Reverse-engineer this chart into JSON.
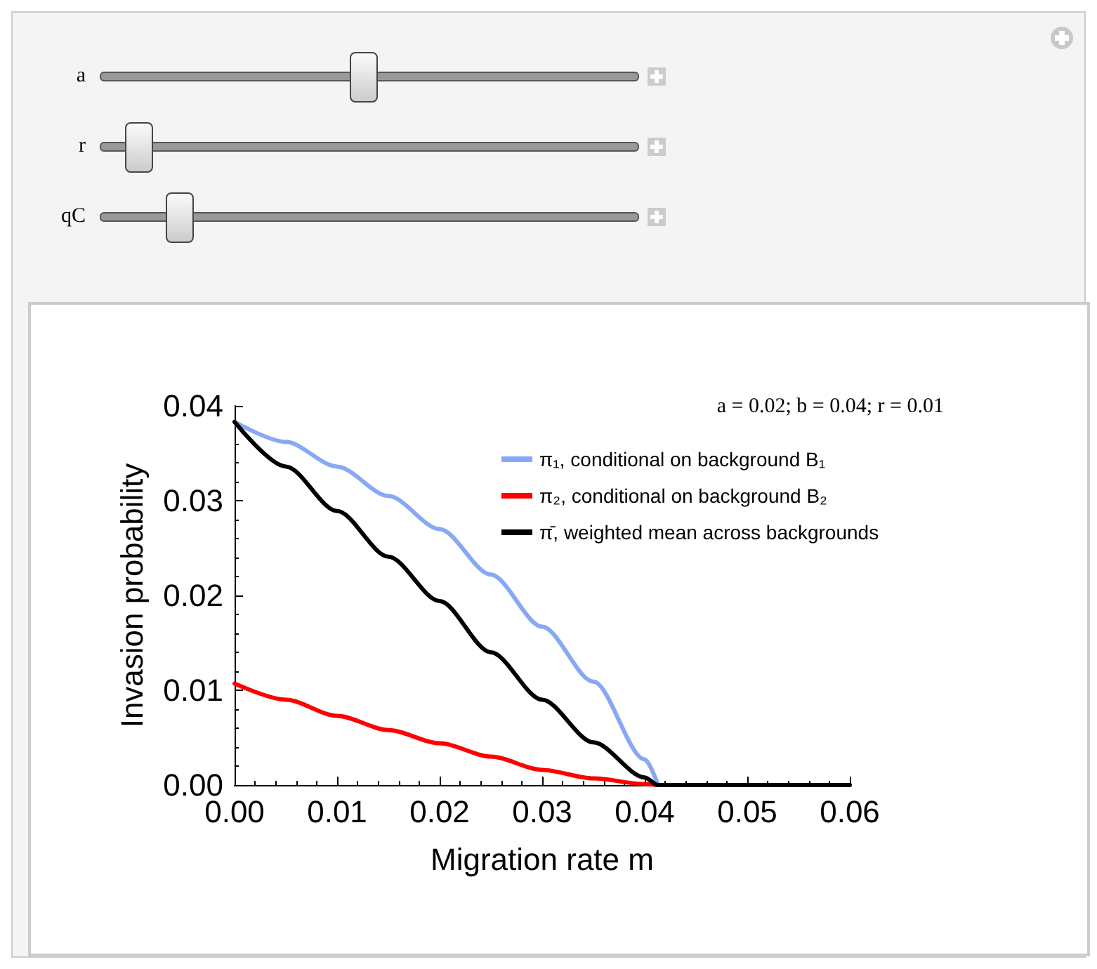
{
  "chart_data": {
    "type": "line",
    "title": "a = 0.02; b = 0.04; r = 0.01",
    "xlabel": "Migration rate m",
    "ylabel": "Invasion probability",
    "annotations": [
      "a",
      "r",
      "qC"
    ],
    "x": [
      0,
      0.005,
      0.01,
      0.015,
      0.02,
      0.025,
      0.03,
      0.035,
      0.04,
      0.0413,
      0.045,
      0.05,
      0.055,
      0.06
    ],
    "series": [
      {
        "name": "π₁, conditional on background B₁",
        "color": "#87a8f5",
        "values": [
          0.0383,
          0.0362,
          0.0336,
          0.0305,
          0.027,
          0.0222,
          0.0167,
          0.0109,
          0.0027,
          0,
          null,
          null,
          null,
          null
        ]
      },
      {
        "name": "π₂, conditional on background B₂",
        "color": "#ff0000",
        "values": [
          0.0107,
          0.009,
          0.0073,
          0.0058,
          0.0044,
          0.003,
          0.0016,
          0.0007,
          0.0001,
          0,
          null,
          null,
          null,
          null
        ]
      },
      {
        "name": "π̄, weighted mean across backgrounds",
        "color": "#000000",
        "values": [
          0.0383,
          0.0336,
          0.0289,
          0.0241,
          0.0194,
          0.014,
          0.009,
          0.0045,
          0.0008,
          0,
          0,
          0,
          0,
          0
        ]
      }
    ],
    "xlim": [
      0,
      0.06
    ],
    "xticks": [
      {
        "value": 0,
        "label": "0.00"
      },
      0.01,
      0.02,
      0.03,
      0.04,
      0.05,
      0.06
    ],
    "ylim": [
      0,
      0.04
    ],
    "yticks": [
      {
        "value": 0,
        "label": "0.00"
      },
      0.01,
      0.02,
      0.03,
      0.04
    ],
    "grid": false,
    "legend": "top right",
    "marker": "none",
    "line_style": "solid"
  }
}
